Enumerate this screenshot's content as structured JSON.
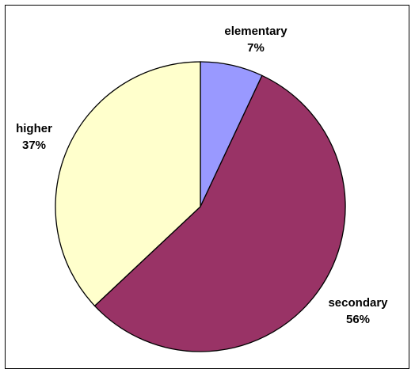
{
  "chart_data": {
    "type": "pie",
    "slices": [
      {
        "label": "elementary",
        "value": 7,
        "percent_label": "7%",
        "color": "#9999ff"
      },
      {
        "label": "secondary",
        "value": 56,
        "percent_label": "56%",
        "color": "#993366"
      },
      {
        "label": "higher",
        "value": 37,
        "percent_label": "37%",
        "color": "#ffffcc"
      }
    ],
    "start_angle_deg": 0,
    "direction": "clockwise",
    "legend": "none",
    "slice_outline_color": "#000000"
  }
}
